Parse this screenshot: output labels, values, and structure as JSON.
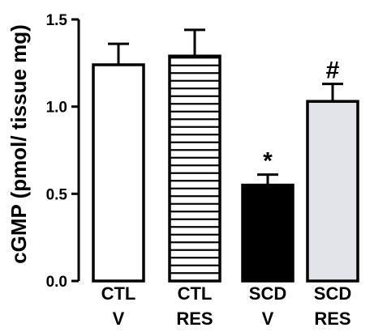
{
  "chart_data": {
    "type": "bar",
    "ylabel": "cGMP (pmol/ tissue mg)",
    "ylim": [
      0,
      1.5
    ],
    "yticks": [
      "0.0",
      "0.5",
      "1.0",
      "1.5"
    ],
    "categories": [
      [
        "CTL",
        "V"
      ],
      [
        "CTL",
        "RES"
      ],
      [
        "SCD",
        "V"
      ],
      [
        "SCD",
        "RES"
      ]
    ],
    "values": [
      1.24,
      1.29,
      0.55,
      1.03
    ],
    "errors": [
      0.12,
      0.15,
      0.06,
      0.1
    ],
    "annotations": [
      "",
      "",
      "*",
      "#"
    ],
    "fills": [
      "white",
      "horizontal-stripes",
      "#000000",
      "#e3e4ea"
    ],
    "grid": false,
    "legend": "none"
  }
}
